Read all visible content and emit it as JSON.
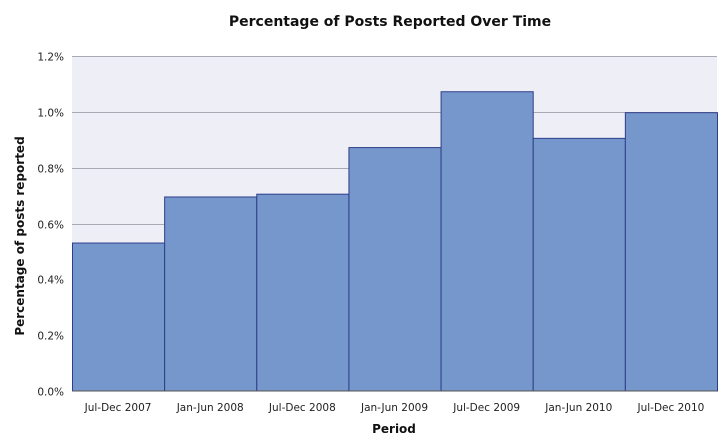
{
  "chart_data": {
    "type": "bar",
    "title": "Percentage of Posts Reported Over Time",
    "xlabel": "Period",
    "ylabel": "Percentage of posts reported",
    "categories": [
      "Jul-Dec 2007",
      "Jan-Jun 2008",
      "Jul-Dec 2008",
      "Jan-Jun 2009",
      "Jul-Dec 2009",
      "Jan-Jun 2010",
      "Jul-Dec 2010"
    ],
    "values": [
      0.53,
      0.695,
      0.705,
      0.872,
      1.072,
      0.905,
      0.997
    ],
    "ylim": [
      0,
      1.2
    ],
    "yticks": [
      0.0,
      0.2,
      0.4,
      0.6,
      0.8,
      1.0,
      1.2
    ],
    "ytick_labels": [
      "0.0%",
      "0.2%",
      "0.4%",
      "0.6%",
      "0.8%",
      "1.0%",
      "1.2%"
    ],
    "grid": true,
    "legend": "none",
    "colors": {
      "bar_fill": "#7597cb",
      "bar_stroke": "#2f3e8a",
      "plot_background": "#eeeef6",
      "grid": "#a9a9b6"
    }
  }
}
